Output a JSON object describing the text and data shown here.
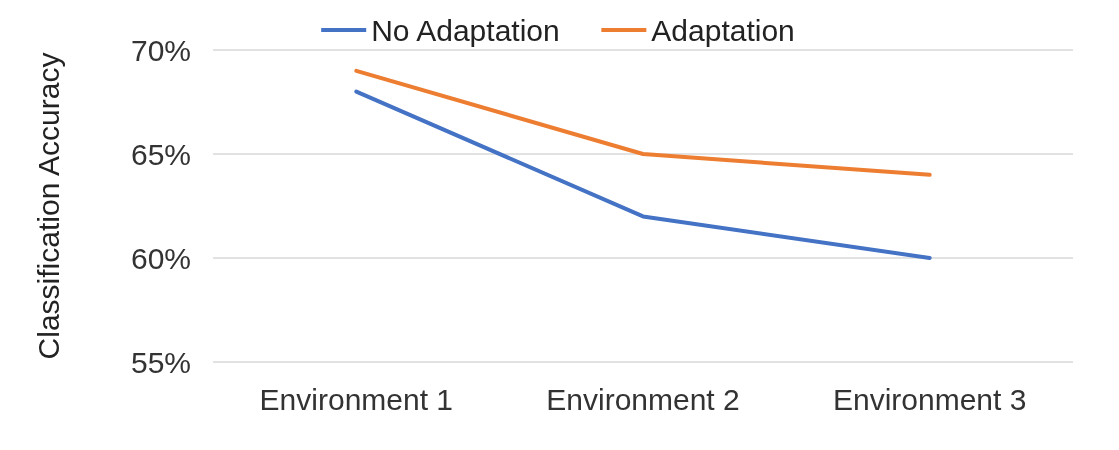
{
  "chart_data": {
    "type": "line",
    "ylabel": "Classification Accuracy",
    "categories": [
      "Environment 1",
      "Environment 2",
      "Environment 3"
    ],
    "series": [
      {
        "name": "No Adaptation",
        "color": "#4472c4",
        "values": [
          68,
          62,
          60
        ]
      },
      {
        "name": "Adaptation",
        "color": "#ed7d31",
        "values": [
          69,
          65,
          64
        ]
      }
    ],
    "ylim": [
      55,
      70
    ],
    "yticks": [
      {
        "value": 55,
        "label": "55%"
      },
      {
        "value": 60,
        "label": "60%"
      },
      {
        "value": 65,
        "label": "65%"
      },
      {
        "value": 70,
        "label": "70%"
      }
    ],
    "grid": "y",
    "legend": "top",
    "marker": "none",
    "line_style": "solid"
  }
}
